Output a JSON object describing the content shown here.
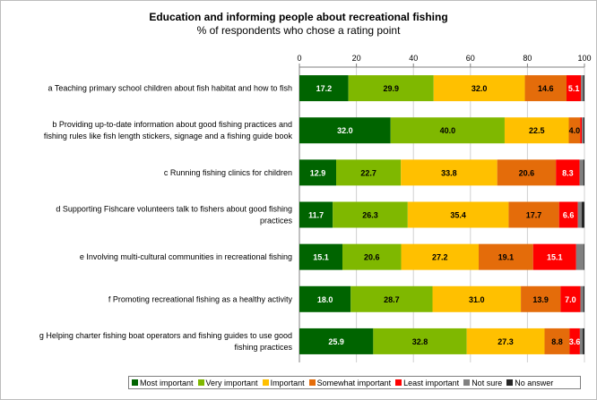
{
  "chart_data": {
    "type": "bar",
    "orientation": "horizontal",
    "stacked": true,
    "title": "Education and informing people about recreational fishing",
    "subtitle": "% of respondents who chose a rating point",
    "xlim": [
      0,
      100
    ],
    "x_ticks": [
      "0",
      "20",
      "40",
      "60",
      "80",
      "100"
    ],
    "x_axis_position": "top",
    "grid": "vertical",
    "legend_position": "bottom",
    "categories": [
      [
        "a Teaching primary school children about fish habitat and how to fish"
      ],
      [
        "b Providing up-to-date information about good fishing practices and",
        "fishing rules like fish length stickers, signage and a fishing guide book"
      ],
      [
        "c Running fishing clinics for children"
      ],
      [
        "d Supporting Fishcare volunteers talk to fishers about good fishing",
        "practices"
      ],
      [
        "e Involving multi-cultural communities in recreational fishing"
      ],
      [
        "f Promoting recreational fishing as a healthy activity"
      ],
      [
        "g Helping charter fishing boat operators and fishing guides to use good",
        "fishing practices"
      ]
    ],
    "series": [
      {
        "name": "Most important",
        "color": "#006400",
        "values": [
          17.2,
          32.0,
          12.9,
          11.7,
          15.1,
          18.0,
          25.9
        ]
      },
      {
        "name": "Very important",
        "color": "#7fb800",
        "values": [
          29.9,
          40.0,
          22.7,
          26.3,
          20.6,
          28.7,
          32.8
        ]
      },
      {
        "name": "Important",
        "color": "#ffc000",
        "values": [
          32.0,
          22.5,
          33.8,
          35.4,
          27.2,
          31.0,
          27.3
        ]
      },
      {
        "name": "Somewhat important",
        "color": "#e46c0a",
        "values": [
          14.6,
          4.0,
          20.6,
          17.7,
          19.1,
          13.9,
          8.8
        ]
      },
      {
        "name": "Least important",
        "color": "#ff0000",
        "values": [
          5.1,
          0.6,
          8.3,
          6.6,
          15.1,
          7.0,
          3.6
        ]
      },
      {
        "name": "Not sure",
        "color": "#808080",
        "values": [
          0.8,
          0.5,
          1.3,
          1.3,
          2.7,
          1.0,
          1.0
        ]
      },
      {
        "name": "No answer",
        "color": "#262626",
        "values": [
          0.4,
          0.4,
          0.4,
          1.0,
          0.2,
          0.4,
          0.6
        ]
      }
    ],
    "data_labels": [
      [
        "17.2",
        "29.9",
        "32.0",
        "14.6",
        "5.1",
        "",
        ""
      ],
      [
        "32.0",
        "40.0",
        "22.5",
        "4.0",
        "",
        "",
        ""
      ],
      [
        "12.9",
        "22.7",
        "33.8",
        "20.6",
        "8.3",
        "",
        ""
      ],
      [
        "11.7",
        "26.3",
        "35.4",
        "17.7",
        "6.6",
        "",
        ""
      ],
      [
        "15.1",
        "20.6",
        "27.2",
        "19.1",
        "15.1",
        "",
        ""
      ],
      [
        "18.0",
        "28.7",
        "31.0",
        "13.9",
        "7.0",
        "",
        ""
      ],
      [
        "25.9",
        "32.8",
        "27.3",
        "8.8",
        "3.6",
        "",
        ""
      ]
    ]
  }
}
